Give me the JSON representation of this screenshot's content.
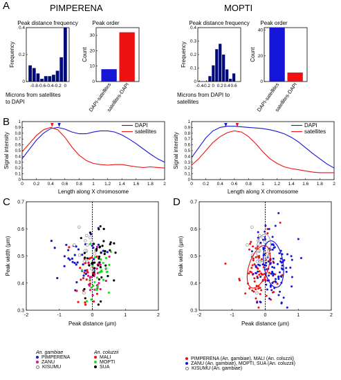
{
  "panel_labels": {
    "a": "A",
    "b": "B",
    "c": "C",
    "d": "D"
  },
  "headers": {
    "left": "PIMPERENA",
    "right": "MOPTI"
  },
  "colors": {
    "blue": "#1515d8",
    "red": "#ee1111",
    "navy": "#000a7a",
    "green": "#22dd22",
    "magenta": "#e0108a",
    "black": "#000000"
  },
  "chart_data": [
    {
      "id": "A-left-hist",
      "type": "bar",
      "title": "Peak distance frequency",
      "xlabel": "Microns from satellites\nto DAPI",
      "ylabel": "Frequency",
      "x": [
        -0.9,
        -0.8,
        -0.7,
        -0.6,
        -0.5,
        -0.4,
        -0.3,
        -0.2,
        -0.1,
        0.0
      ],
      "values": [
        0.12,
        0.1,
        0.06,
        0.02,
        0.04,
        0.04,
        0.05,
        0.08,
        0.18,
        0.4
      ],
      "xlim": [
        -1.0,
        0.1
      ],
      "ylim": [
        0,
        0.4
      ],
      "xticks": [
        "-0.8",
        "-0.6",
        "-0.4",
        "-0.2",
        "0"
      ],
      "yticks": [
        "0",
        "0.2",
        "0.4"
      ]
    },
    {
      "id": "A-left-order",
      "type": "bar",
      "title": "Peak order",
      "ylabel": "Count",
      "categories": [
        "DAPI-satellites",
        "satellites-DAPI"
      ],
      "values": [
        8,
        32
      ],
      "ylim": [
        0,
        35
      ],
      "yticks": [
        "0",
        "10",
        "20",
        "30"
      ]
    },
    {
      "id": "A-right-hist",
      "type": "bar",
      "title": "Peak distance frequency",
      "xlabel": "Microns from DAPI to\nsatellites",
      "ylabel": "Frequency",
      "x": [
        -0.1,
        0.0,
        0.1,
        0.2,
        0.3,
        0.4,
        0.5,
        0.6
      ],
      "values": [
        0.04,
        0.12,
        0.24,
        0.28,
        0.2,
        0.09,
        0.02,
        0.06
      ],
      "xlim": [
        -0.45,
        0.8
      ],
      "ylim": [
        0,
        0.4
      ],
      "xticks": [
        "-0.4",
        "-0.2",
        "0",
        "0.2",
        "0.4",
        "0.6"
      ],
      "yticks": [
        "0",
        "0.1",
        "0.2",
        "0.3",
        "0.4"
      ]
    },
    {
      "id": "A-right-order",
      "type": "bar",
      "title": "Peak order",
      "ylabel": "Count",
      "categories": [
        "DAPI-satellites",
        "satellites-DAPI"
      ],
      "values": [
        42,
        7
      ],
      "ylim": [
        0,
        42
      ],
      "yticks": [
        "0",
        "20",
        "40"
      ]
    },
    {
      "id": "B-left",
      "type": "line",
      "xlabel": "Length along X chromosome",
      "ylabel": "Signal intensity",
      "xlim": [
        0,
        2
      ],
      "ylim": [
        0,
        1
      ],
      "xticks": [
        "0",
        "0.2",
        "0.4",
        "0.6",
        "0.8",
        "1",
        "1.2",
        "1.4",
        "1.6",
        "1.8",
        "2"
      ],
      "yticks": [
        "0",
        "0.1",
        "0.2",
        "0.3",
        "0.4",
        "0.5",
        "0.6",
        "0.7",
        "0.8",
        "0.9",
        "1"
      ],
      "legend": "top-right",
      "series": [
        {
          "name": "DAPI",
          "color": "#1515d8",
          "x": [
            0,
            0.1,
            0.2,
            0.3,
            0.4,
            0.5,
            0.6,
            0.7,
            0.8,
            0.9,
            1.0,
            1.1,
            1.2,
            1.3,
            1.4,
            1.5,
            1.6,
            1.7,
            1.8,
            1.9,
            2.0
          ],
          "y": [
            0.36,
            0.52,
            0.68,
            0.8,
            0.88,
            0.9,
            0.87,
            0.82,
            0.79,
            0.79,
            0.82,
            0.84,
            0.84,
            0.82,
            0.77,
            0.7,
            0.62,
            0.53,
            0.44,
            0.36,
            0.3
          ]
        },
        {
          "name": "satellites",
          "color": "#ee1111",
          "x": [
            0,
            0.1,
            0.2,
            0.3,
            0.4,
            0.5,
            0.6,
            0.7,
            0.8,
            0.9,
            1.0,
            1.1,
            1.2,
            1.3,
            1.4,
            1.5,
            1.6,
            1.7,
            1.8,
            1.9,
            2.0
          ],
          "y": [
            0.48,
            0.62,
            0.76,
            0.86,
            0.9,
            0.86,
            0.73,
            0.56,
            0.42,
            0.33,
            0.28,
            0.26,
            0.25,
            0.26,
            0.26,
            0.24,
            0.22,
            0.21,
            0.22,
            0.21,
            0.2
          ]
        }
      ],
      "arrow_markers": [
        {
          "color": "#ee1111",
          "x": 0.42
        },
        {
          "color": "#1515d8",
          "x": 0.52
        }
      ]
    },
    {
      "id": "B-right",
      "type": "line",
      "xlabel": "Length along X chromosome",
      "ylabel": "Signal intensity",
      "xlim": [
        0,
        2
      ],
      "ylim": [
        0,
        1
      ],
      "xticks": [
        "0",
        "0.2",
        "0.4",
        "0.6",
        "0.8",
        "1",
        "1.2",
        "1.4",
        "1.6",
        "1.8",
        "2"
      ],
      "yticks": [
        "0",
        "0.1",
        "0.2",
        "0.3",
        "0.4",
        "0.5",
        "0.6",
        "0.7",
        "0.8",
        "0.9",
        "1"
      ],
      "legend": "top-right",
      "series": [
        {
          "name": "DAPI",
          "color": "#1515d8",
          "x": [
            0,
            0.1,
            0.2,
            0.3,
            0.4,
            0.5,
            0.6,
            0.7,
            0.8,
            0.9,
            1.0,
            1.1,
            1.2,
            1.3,
            1.4,
            1.5,
            1.6,
            1.7,
            1.8,
            1.9,
            2.0
          ],
          "y": [
            0.38,
            0.55,
            0.72,
            0.84,
            0.9,
            0.92,
            0.92,
            0.91,
            0.9,
            0.89,
            0.88,
            0.86,
            0.83,
            0.79,
            0.73,
            0.65,
            0.55,
            0.45,
            0.36,
            0.27,
            0.2
          ]
        },
        {
          "name": "satellites",
          "color": "#ee1111",
          "x": [
            0,
            0.1,
            0.2,
            0.3,
            0.4,
            0.5,
            0.6,
            0.7,
            0.8,
            0.9,
            1.0,
            1.1,
            1.2,
            1.3,
            1.4,
            1.5,
            1.6,
            1.7,
            1.8,
            1.9,
            2.0
          ],
          "y": [
            0.25,
            0.36,
            0.5,
            0.64,
            0.74,
            0.81,
            0.84,
            0.82,
            0.74,
            0.62,
            0.48,
            0.36,
            0.28,
            0.22,
            0.19,
            0.17,
            0.15,
            0.13,
            0.12,
            0.12,
            0.12
          ]
        }
      ],
      "arrow_markers": [
        {
          "color": "#1515d8",
          "x": 0.48
        },
        {
          "color": "#ee1111",
          "x": 0.64
        }
      ]
    },
    {
      "id": "C",
      "type": "scatter",
      "xlabel": "Peak distance (μm)",
      "ylabel": "Peak width (μm)",
      "xlim": [
        -2,
        2
      ],
      "ylim": [
        0.3,
        0.7
      ],
      "xticks": [
        "-2",
        "-1",
        "0",
        "1",
        "2"
      ],
      "yticks": [
        "0.3",
        "0.4",
        "0.5",
        "0.6",
        "0.7"
      ],
      "legend_groups": [
        {
          "title": "An. gambiae",
          "items": [
            {
              "label": "PIMPERENA",
              "color": "#1515d8",
              "marker": "dot"
            },
            {
              "label": "ZANU",
              "color": "#e0108a",
              "marker": "dot"
            },
            {
              "label": "KISUMU",
              "color": "#777777",
              "marker": "circle"
            }
          ]
        },
        {
          "title": "An. coluzzii",
          "items": [
            {
              "label": "MALI",
              "color": "#ee1111",
              "marker": "dot"
            },
            {
              "label": "MOPTI",
              "color": "#22dd22",
              "marker": "dot"
            },
            {
              "label": "SUA",
              "color": "#000000",
              "marker": "dot"
            }
          ]
        }
      ]
    },
    {
      "id": "D",
      "type": "scatter",
      "xlabel": "Peak distance (μm)",
      "ylabel": "Peak width (μm)",
      "xlim": [
        -2,
        2
      ],
      "ylim": [
        0.3,
        0.7
      ],
      "xticks": [
        "-2",
        "-1",
        "0",
        "1",
        "2"
      ],
      "yticks": [
        "0.3",
        "0.4",
        "0.5",
        "0.6",
        "0.7"
      ],
      "legend_items": [
        {
          "label": "PIMPERENA (An. gambiae), MALI (An. coluzzii)",
          "color": "#ee1111",
          "marker": "dot"
        },
        {
          "label": "ZANU (An. gambiae), MOPTI, SUA (An. coluzzii)",
          "color": "#1515d8",
          "marker": "dot"
        },
        {
          "label": "KISUMU (An. gambiae)",
          "color": "#777777",
          "marker": "circle"
        }
      ]
    }
  ]
}
